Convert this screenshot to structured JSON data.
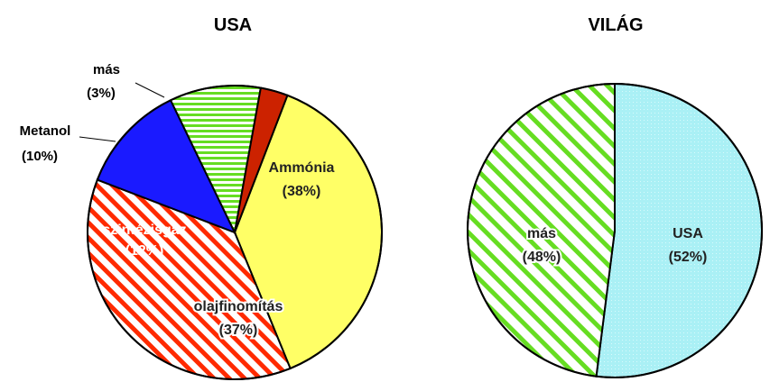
{
  "chart_data": [
    {
      "type": "pie",
      "title": "USA",
      "slices": [
        {
          "label": "Ammónia",
          "value": 38,
          "pct": "(38%)",
          "color": "#ffff66",
          "fill": "yellow"
        },
        {
          "label": "olajfinomítás",
          "value": 37,
          "pct": "(37%)",
          "color": "#ff2a00",
          "fill": "red-hatch"
        },
        {
          "label": "szintézisgáz",
          "value": 12,
          "pct": "(12%)",
          "color": "#1a1aff",
          "fill": "blue"
        },
        {
          "label": "Metanol",
          "value": 10,
          "pct": "(10%)",
          "color": "#66dd22",
          "fill": "green-lines"
        },
        {
          "label": "más",
          "value": 3,
          "pct": "(3%)",
          "color": "#cc2200",
          "fill": "darkred"
        }
      ]
    },
    {
      "type": "pie",
      "title": "VILÁG",
      "slices": [
        {
          "label": "USA",
          "value": 52,
          "pct": "(52%)",
          "color": "#aaf0f5",
          "fill": "cyan"
        },
        {
          "label": "más",
          "value": 48,
          "pct": "(48%)",
          "color": "#66dd22",
          "fill": "green-hatch"
        }
      ]
    }
  ]
}
